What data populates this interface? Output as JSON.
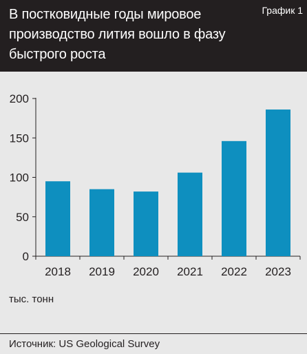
{
  "header": {
    "title": "В постковидные годы мировое производство лития вошло в фазу быстрого роста",
    "badge": "График 1"
  },
  "chart_data": {
    "type": "bar",
    "categories": [
      "2018",
      "2019",
      "2020",
      "2021",
      "2022",
      "2023"
    ],
    "values": [
      95,
      85,
      82,
      106,
      146,
      186
    ],
    "title": "В постковидные годы мировое производство лития вошло в фазу быстрого роста",
    "xlabel": "",
    "ylabel": "тыс. тонн",
    "ylim": [
      0,
      200
    ],
    "yticks": [
      0,
      50,
      100,
      150,
      200
    ],
    "grid": false,
    "bar_color": "#0e8fbf"
  },
  "footer": {
    "unit": "тыс. тонн",
    "source": "Источник: US Geological Survey"
  }
}
